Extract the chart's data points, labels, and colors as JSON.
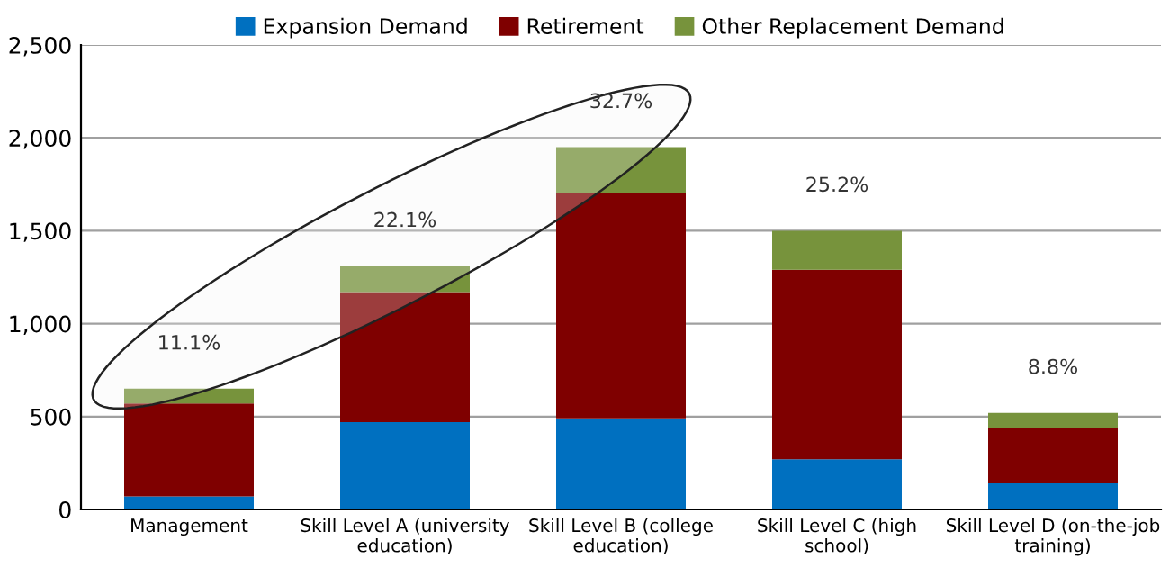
{
  "chart_data": {
    "type": "bar",
    "stacked": true,
    "categories": [
      "Management",
      "Skill Level A (university\neducation)",
      "Skill Level B (college\neducation)",
      "Skill Level C (high\nschool)",
      "Skill Level D (on-the-job\ntraining)"
    ],
    "series": [
      {
        "name": "Expansion Demand",
        "color": "#0070c0",
        "values": [
          70,
          470,
          490,
          270,
          140
        ]
      },
      {
        "name": "Retirement",
        "color": "#7f0000",
        "values": [
          500,
          700,
          1210,
          1020,
          300
        ]
      },
      {
        "name": "Other Replacement Demand",
        "color": "#77933c",
        "values": [
          80,
          140,
          250,
          210,
          80
        ]
      }
    ],
    "ylim": [
      0,
      2500
    ],
    "yticks": [
      0,
      500,
      {
        "value": 1000,
        "label": "1,000"
      },
      {
        "value": 1500,
        "label": "1,500"
      },
      {
        "value": 2000,
        "label": "2,000"
      },
      {
        "value": 2500,
        "label": "2,500"
      }
    ],
    "annotations": [
      "11.1%",
      "22.1%",
      "32.7%",
      "25.2%",
      "8.8%"
    ],
    "grid": "y",
    "legend": "top"
  }
}
